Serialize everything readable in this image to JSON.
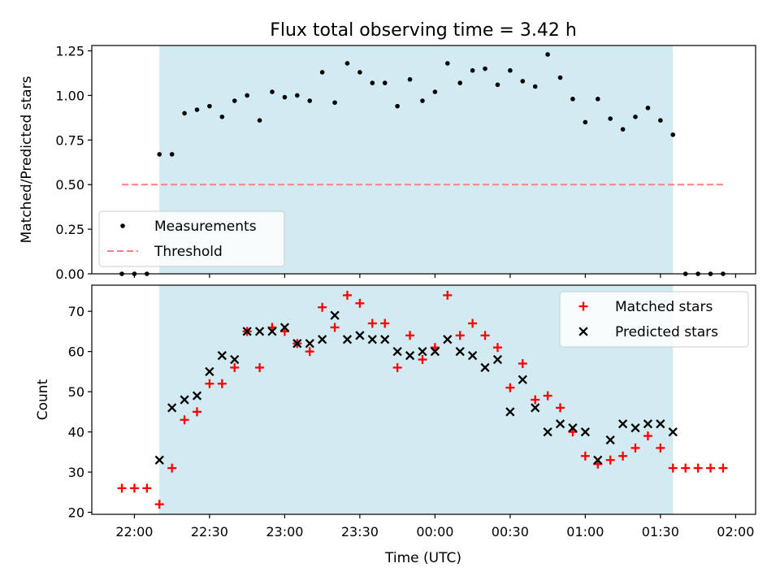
{
  "chart_data": [
    {
      "type": "scatter",
      "title": "Flux total observing time = 3.42 h",
      "ylabel": "Matched/Predicted stars",
      "xlabel": "",
      "ylim": [
        0,
        1.28
      ],
      "yticks": [
        "0.00",
        "0.25",
        "0.50",
        "0.75",
        "1.00",
        "1.25"
      ],
      "ytick_values": [
        0,
        0.25,
        0.5,
        0.75,
        1.0,
        1.25
      ],
      "grid": false,
      "legend_position": "lower-left",
      "shaded_interval": {
        "from": "22:10",
        "to": "01:35",
        "color": "#add8e6"
      },
      "series": [
        {
          "name": "Measurements",
          "marker": "dot",
          "color": "#000000",
          "x": [
            "21:55",
            "22:00",
            "22:05",
            "22:10",
            "22:15",
            "22:20",
            "22:25",
            "22:30",
            "22:35",
            "22:40",
            "22:45",
            "22:50",
            "22:55",
            "23:00",
            "23:05",
            "23:10",
            "23:15",
            "23:20",
            "23:25",
            "23:30",
            "23:35",
            "23:40",
            "23:45",
            "23:50",
            "23:55",
            "00:00",
            "00:05",
            "00:10",
            "00:15",
            "00:20",
            "00:25",
            "00:30",
            "00:35",
            "00:40",
            "00:45",
            "00:50",
            "00:55",
            "01:00",
            "01:05",
            "01:10",
            "01:15",
            "01:20",
            "01:25",
            "01:30",
            "01:35",
            "01:40",
            "01:45",
            "01:50",
            "01:55"
          ],
          "values": [
            0.0,
            0.0,
            0.0,
            0.67,
            0.67,
            0.9,
            0.92,
            0.94,
            0.88,
            0.97,
            1.0,
            0.86,
            1.02,
            0.99,
            1.0,
            0.97,
            1.13,
            0.96,
            1.18,
            1.13,
            1.07,
            1.07,
            0.94,
            1.09,
            0.97,
            1.02,
            1.18,
            1.07,
            1.14,
            1.15,
            1.06,
            1.14,
            1.08,
            1.05,
            1.23,
            1.1,
            0.98,
            0.85,
            0.98,
            0.87,
            0.81,
            0.88,
            0.93,
            0.86,
            0.78,
            0.0,
            0.0,
            0.0,
            0.0
          ]
        },
        {
          "name": "Threshold",
          "marker": "dashed-line",
          "color": "#ff7f7f",
          "x": [
            "21:55",
            "01:55"
          ],
          "values": [
            0.5,
            0.5
          ]
        }
      ]
    },
    {
      "type": "scatter",
      "title": "",
      "ylabel": "Count",
      "xlabel": "Time (UTC)",
      "ylim": [
        19.5,
        76.5
      ],
      "yticks": [
        "20",
        "30",
        "40",
        "50",
        "60",
        "70"
      ],
      "ytick_values": [
        20,
        30,
        40,
        50,
        60,
        70
      ],
      "xticks": [
        "22:00",
        "22:30",
        "23:00",
        "23:30",
        "00:00",
        "00:30",
        "01:00",
        "01:30",
        "02:00"
      ],
      "grid": false,
      "legend_position": "upper-right",
      "shaded_interval": {
        "from": "22:10",
        "to": "01:35",
        "color": "#add8e6"
      },
      "series": [
        {
          "name": "Matched stars",
          "marker": "plus",
          "color": "#ff0000",
          "x": [
            "21:55",
            "22:00",
            "22:05",
            "22:10",
            "22:15",
            "22:20",
            "22:25",
            "22:30",
            "22:35",
            "22:40",
            "22:45",
            "22:50",
            "22:55",
            "23:00",
            "23:05",
            "23:10",
            "23:15",
            "23:20",
            "23:25",
            "23:30",
            "23:35",
            "23:40",
            "23:45",
            "23:50",
            "23:55",
            "00:00",
            "00:05",
            "00:10",
            "00:15",
            "00:20",
            "00:25",
            "00:30",
            "00:35",
            "00:40",
            "00:45",
            "00:50",
            "00:55",
            "01:00",
            "01:05",
            "01:10",
            "01:15",
            "01:20",
            "01:25",
            "01:30",
            "01:35",
            "01:40",
            "01:45",
            "01:50",
            "01:55"
          ],
          "values": [
            26,
            26,
            26,
            22,
            31,
            43,
            45,
            52,
            52,
            56,
            65,
            56,
            66,
            65,
            62,
            60,
            71,
            66,
            74,
            72,
            67,
            67,
            56,
            64,
            58,
            61,
            74,
            64,
            67,
            64,
            61,
            51,
            57,
            48,
            49,
            46,
            40,
            34,
            32,
            33,
            34,
            36,
            39,
            36,
            31,
            31,
            31,
            31,
            31
          ]
        },
        {
          "name": "Predicted stars",
          "marker": "x",
          "color": "#000000",
          "x": [
            "22:10",
            "22:15",
            "22:20",
            "22:25",
            "22:30",
            "22:35",
            "22:40",
            "22:45",
            "22:50",
            "22:55",
            "23:00",
            "23:05",
            "23:10",
            "23:15",
            "23:20",
            "23:25",
            "23:30",
            "23:35",
            "23:40",
            "23:45",
            "23:50",
            "23:55",
            "00:00",
            "00:05",
            "00:10",
            "00:15",
            "00:20",
            "00:25",
            "00:30",
            "00:35",
            "00:40",
            "00:45",
            "00:50",
            "00:55",
            "01:00",
            "01:05",
            "01:10",
            "01:15",
            "01:20",
            "01:25",
            "01:30",
            "01:35"
          ],
          "values": [
            33,
            46,
            48,
            49,
            55,
            59,
            58,
            65,
            65,
            65,
            66,
            62,
            62,
            63,
            69,
            63,
            64,
            63,
            63,
            60,
            59,
            60,
            60,
            63,
            60,
            59,
            56,
            58,
            45,
            53,
            46,
            40,
            42,
            41,
            40,
            33,
            38,
            42,
            41,
            42,
            42,
            40
          ]
        }
      ]
    }
  ]
}
